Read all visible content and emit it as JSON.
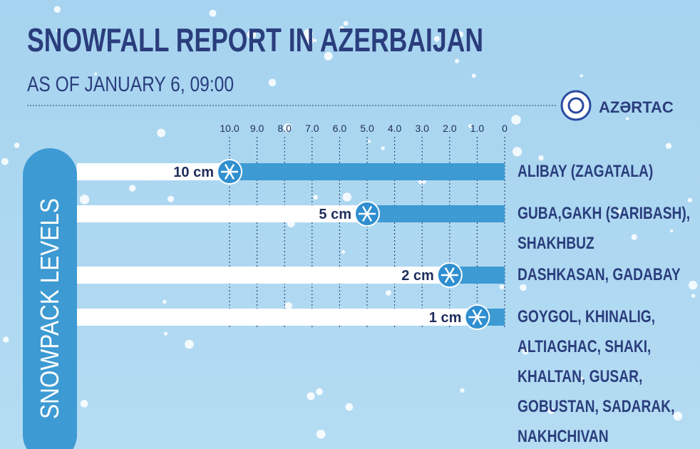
{
  "logo": "AZƏRTAC",
  "chart_data": {
    "type": "bar",
    "orientation": "horizontal",
    "title": "SNOWFALL REPORT IN AZERBAIJAN",
    "subtitle": "AS OF JANUARY 6, 09:00",
    "ylabel": "SNOWPACK LEVELS",
    "categories": [
      "ALIBAY (ZAGATALA)",
      "GUBA,GAKH (SARIBASH), SHAKHBUZ",
      "DASHKASAN, GADABAY",
      "GOYGOL, KHINALIG, ALTIAGHAC, SHAKI, KHALTAN, GUSAR, GOBUSTAN, SADARAK, NAKHCHIVAN"
    ],
    "values": [
      10,
      5,
      2,
      1
    ],
    "value_labels": [
      "10 cm",
      "5 cm",
      "2 cm",
      "1 cm"
    ],
    "color": "#3d9ad3",
    "xlim": [
      0,
      10
    ],
    "xticks": [
      {
        "value": 10,
        "label": "10.0"
      },
      {
        "value": 9,
        "label": "9.0"
      },
      {
        "value": 8,
        "label": "8.0"
      },
      {
        "value": 7,
        "label": "7.0"
      },
      {
        "value": 6,
        "label": "6.0"
      },
      {
        "value": 5,
        "label": "5.0"
      },
      {
        "value": 4,
        "label": "4.0"
      },
      {
        "value": 3,
        "label": "3.0"
      },
      {
        "value": 2,
        "label": "2.0"
      },
      {
        "value": 1,
        "label": "1.0"
      },
      0
    ],
    "grid": true
  }
}
